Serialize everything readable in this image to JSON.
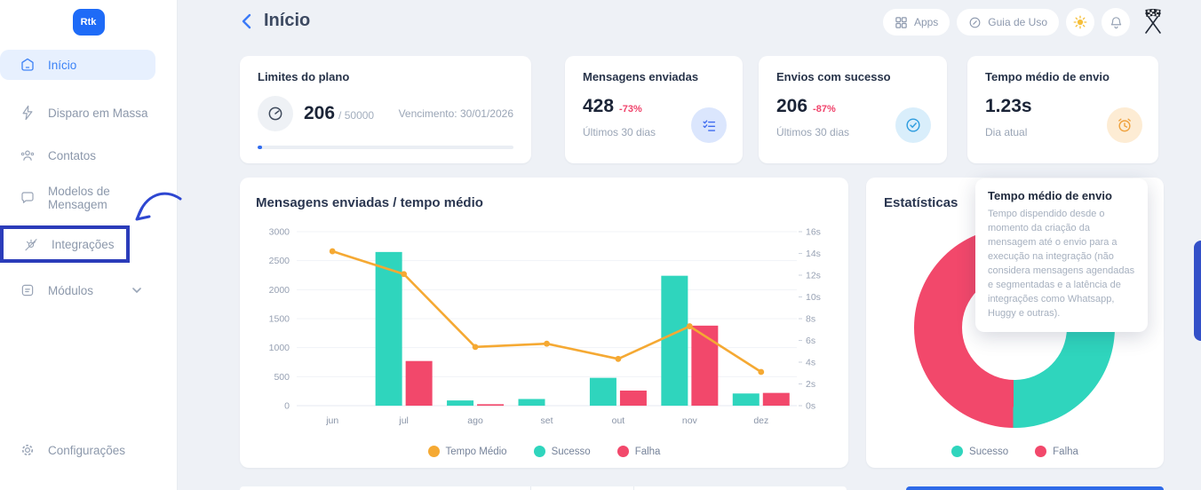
{
  "sidebar": {
    "logo_text": "Rtk",
    "items": [
      {
        "label": "Início",
        "icon": "home-icon",
        "active": true
      },
      {
        "label": "Disparo em Massa",
        "icon": "bolt-icon"
      },
      {
        "label": "Contatos",
        "icon": "contacts-icon"
      },
      {
        "label": "Modelos de Mensagem",
        "icon": "message-icon"
      },
      {
        "label": "Integrações",
        "icon": "integrations-icon",
        "annotated": true
      },
      {
        "label": "Módulos",
        "icon": "modules-icon",
        "has_chevron": true
      }
    ],
    "footer": {
      "label": "Configurações",
      "icon": "gear-icon"
    }
  },
  "header": {
    "title": "Início",
    "buttons": {
      "apps": "Apps",
      "guide": "Guia de Uso"
    }
  },
  "stat_cards": [
    {
      "title": "Limites do plano",
      "value": "206",
      "suffix": "/ 50000",
      "right_note": "Vencimento: 30/01/2026",
      "icon": "gauge-icon",
      "used": 206,
      "limit": 50000
    },
    {
      "title": "Mensagens enviadas",
      "value": "428",
      "delta": "-73%",
      "subtitle": "Últimos 30 dias",
      "icon": "checklist-icon"
    },
    {
      "title": "Envios com sucesso",
      "value": "206",
      "delta": "-87%",
      "subtitle": "Últimos 30 dias",
      "icon": "check-circle-icon"
    },
    {
      "title": "Tempo médio de envio",
      "value": "1.23s",
      "subtitle": "Dia atual",
      "icon": "alarm-icon"
    }
  ],
  "tooltip": {
    "title": "Tempo médio de envio",
    "body": "Tempo dispendido desde o momento da criação da mensagem até o envio para a execução na integração (não considera mensagens agendadas e segmentadas e a latência de integrações como Whatsapp, Huggy e outras)."
  },
  "chart_data": [
    {
      "type": "bar",
      "title": "Mensagens enviadas / tempo médio",
      "categories": [
        "jun",
        "jul",
        "ago",
        "set",
        "out",
        "nov",
        "dez"
      ],
      "series": [
        {
          "name": "Sucesso",
          "type": "bar",
          "color": "#2fd5bd",
          "values": [
            0,
            2650,
            90,
            115,
            480,
            2240,
            210
          ]
        },
        {
          "name": "Falha",
          "type": "bar",
          "color": "#f2486b",
          "values": [
            0,
            770,
            25,
            0,
            260,
            1380,
            220
          ]
        },
        {
          "name": "Tempo Médio",
          "type": "line",
          "axis": "right",
          "color": "#f5a933",
          "values": [
            14.2,
            12.1,
            5.4,
            5.7,
            4.3,
            7.3,
            3.1
          ]
        }
      ],
      "ylim": [
        0,
        3000
      ],
      "y_ticks": [
        0,
        500,
        1000,
        1500,
        2000,
        2500,
        3000
      ],
      "y2lim": [
        0,
        16
      ],
      "y2_ticks": [
        "0s",
        "2s",
        "4s",
        "6s",
        "8s",
        "10s",
        "12s",
        "14s",
        "16s"
      ],
      "grid": true,
      "legend_position": "bottom",
      "legend": [
        {
          "label": "Tempo Médio",
          "color": "#f5a933"
        },
        {
          "label": "Sucesso",
          "color": "#2fd5bd"
        },
        {
          "label": "Falha",
          "color": "#f2486b"
        }
      ]
    },
    {
      "type": "pie",
      "donut": true,
      "title": "Estatísticas",
      "labels": [
        "Sucesso",
        "Falha"
      ],
      "values": [
        48,
        52
      ],
      "colors": [
        "#2fd5bd",
        "#f2486b"
      ],
      "rotation_deg": 8,
      "legend_position": "bottom",
      "legend": [
        {
          "label": "Sucesso",
          "color": "#2fd5bd"
        },
        {
          "label": "Falha",
          "color": "#f2486b"
        }
      ]
    }
  ],
  "colors": {
    "accent_blue": "#1e6bf7",
    "annotation_blue": "#2b3cba",
    "side_tab_blue": "#3350c8",
    "bottom_strip_blue": "#2e6ae8",
    "delta_red": "#f0436b"
  }
}
